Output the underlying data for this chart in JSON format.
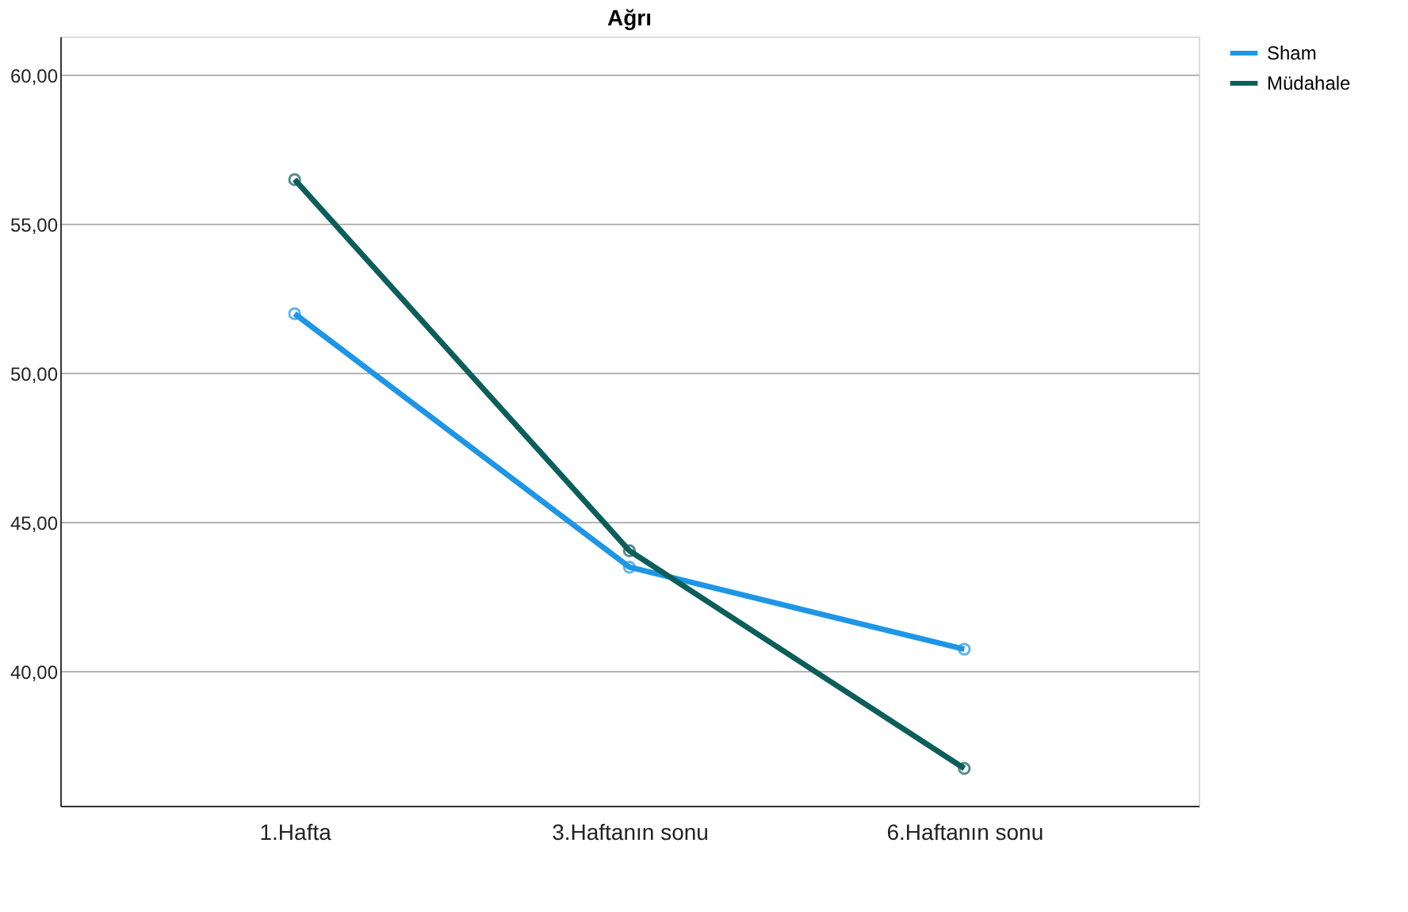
{
  "chart_data": {
    "type": "line",
    "title": "Ağrı",
    "categories": [
      "1.Hafta",
      "3.Haftanın sonu",
      "6.Haftanın sonu"
    ],
    "series": [
      {
        "name": "Sham",
        "color": "#1e96e6",
        "values": [
          52.0,
          43.5,
          40.75
        ]
      },
      {
        "name": "Müdahale",
        "color": "#0b5e5a",
        "values": [
          56.5,
          44.05,
          36.75
        ]
      }
    ],
    "ylim": [
      35.5,
      61.3
    ],
    "yticks": [
      {
        "value": 40,
        "label": "40,00"
      },
      {
        "value": 45,
        "label": "45,00"
      },
      {
        "value": 50,
        "label": "50,00"
      },
      {
        "value": 55,
        "label": "55,00"
      },
      {
        "value": 60,
        "label": "60,00"
      }
    ],
    "grid": "y",
    "legend": "top right",
    "marker": "circle",
    "line_style": "solid"
  }
}
